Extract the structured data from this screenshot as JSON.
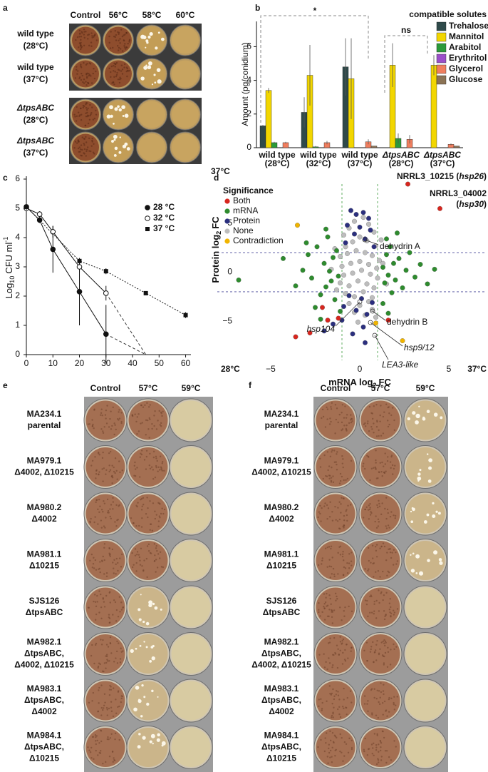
{
  "panel_labels": [
    "a",
    "b",
    "c",
    "d",
    "e",
    "f"
  ],
  "photo_panels": {
    "a": {
      "columns": [
        "Control",
        "56°C",
        "58°C",
        "60°C"
      ],
      "rows": [
        [
          "wild type",
          "(28°C)"
        ],
        [
          "wild type",
          "(37°C)"
        ],
        [
          "ΔtpsABC",
          "(28°C)"
        ],
        [
          "ΔtpsABC",
          "(37°C)"
        ]
      ]
    },
    "e": {
      "columns": [
        "Control",
        "57°C",
        "59°C"
      ],
      "rows": [
        [
          "MA234.1",
          "parental"
        ],
        [
          "MA979.1",
          "Δ4002, Δ10215"
        ],
        [
          "MA980.2",
          "Δ4002"
        ],
        [
          "MA981.1",
          "Δ10215"
        ],
        [
          "SJS126",
          "ΔtpsABC"
        ],
        [
          "MA982.1",
          "ΔtpsABC,",
          "Δ4002, Δ10215"
        ],
        [
          "MA983.1",
          "ΔtpsABC,",
          "Δ4002"
        ],
        [
          "MA984.1",
          "ΔtpsABC,",
          "Δ10215"
        ]
      ]
    },
    "f": {
      "columns": [
        "Control",
        "57°C",
        "59°C"
      ],
      "rows": [
        [
          "MA234.1",
          "parental"
        ],
        [
          "MA979.1",
          "Δ4002, Δ10215"
        ],
        [
          "MA980.2",
          "Δ4002"
        ],
        [
          "MA981.1",
          "Δ10215"
        ],
        [
          "SJS126",
          "ΔtpsABC"
        ],
        [
          "MA982.1",
          "ΔtpsABC,",
          "Δ4002, Δ10215"
        ],
        [
          "MA983.1",
          "ΔtpsABC,",
          "Δ4002"
        ],
        [
          "MA984.1",
          "ΔtpsABC,",
          "Δ10215"
        ]
      ]
    }
  },
  "chart_data": [
    {
      "type": "bar",
      "ylabel": "Amount (pg/conidium)",
      "legend_title": "compatible solutes",
      "categories": [
        [
          "wild type",
          "(28°C)"
        ],
        [
          "wild type",
          "(32°C)"
        ],
        [
          "wild type",
          "(37°C)"
        ],
        [
          "ΔtpsABC",
          "(28°C)"
        ],
        [
          "ΔtpsABC",
          "(37°C)"
        ]
      ],
      "series": [
        {
          "name": "Trehalose",
          "color": "#2f4a4a",
          "values": [
            1.3,
            2.1,
            4.8,
            0,
            0
          ],
          "errors": [
            0.05,
            0.9,
            1.7,
            0,
            0
          ]
        },
        {
          "name": "Mannitol",
          "color": "#f2d600",
          "values": [
            3.4,
            4.3,
            4.1,
            4.9,
            4.9
          ],
          "errors": [
            0.15,
            1.8,
            2.4,
            1.3,
            0.6
          ]
        },
        {
          "name": "Arabitol",
          "color": "#2b9a3a",
          "values": [
            0.3,
            0.05,
            0,
            0.55,
            0
          ],
          "errors": [
            0.05,
            0.05,
            0,
            0.3,
            0
          ]
        },
        {
          "name": "Erythritol",
          "color": "#9b4fc9",
          "values": [
            0,
            0,
            0,
            0,
            0
          ],
          "errors": [
            0,
            0,
            0,
            0,
            0
          ]
        },
        {
          "name": "Glycerol",
          "color": "#f07e5e",
          "values": [
            0.3,
            0.3,
            0.35,
            0.5,
            0.2
          ],
          "errors": [
            0.05,
            0.1,
            0.15,
            0.25,
            0.05
          ]
        },
        {
          "name": "Glucose",
          "color": "#8b7355",
          "values": [
            0,
            0,
            0.1,
            0,
            0.1
          ],
          "errors": [
            0,
            0,
            0,
            0,
            0
          ]
        }
      ],
      "ylim": [
        0,
        7.5
      ],
      "yticks": [
        0,
        2,
        4,
        6
      ],
      "annotations": [
        "*",
        "ns"
      ]
    },
    {
      "type": "line",
      "ylabel": [
        "Log",
        "10",
        "CFU ml",
        "-1"
      ],
      "series": [
        {
          "name": "28 °C",
          "marker": "filled-circle",
          "x": [
            0,
            5,
            10,
            20,
            30
          ],
          "values": [
            5.05,
            4.6,
            3.6,
            2.15,
            0.7
          ],
          "errors": [
            0.1,
            0.1,
            0.8,
            1.15,
            1.0
          ],
          "extrapolation": {
            "x": 45,
            "y": 0
          }
        },
        {
          "name": "32 °C",
          "marker": "open-circle",
          "x": [
            0,
            5,
            10,
            20,
            30
          ],
          "values": [
            5.0,
            4.8,
            4.2,
            3.0,
            2.1
          ],
          "errors": [
            0.1,
            0.1,
            0.2,
            0.2,
            0.25
          ],
          "extrapolation": {
            "x": 45,
            "y": 0
          }
        },
        {
          "name": "37 °C",
          "marker": "square",
          "x": [
            0,
            20,
            30,
            45,
            60
          ],
          "values": [
            5.05,
            3.2,
            2.85,
            2.1,
            1.35
          ],
          "errors": [
            0.1,
            0.1,
            0.1,
            0.05,
            0.1
          ]
        }
      ],
      "xlim": [
        0,
        62
      ],
      "ylim": [
        0,
        6
      ],
      "xticks": [
        0,
        10,
        20,
        30,
        40,
        50,
        60
      ],
      "yticks": [
        0,
        1,
        2,
        3,
        4,
        5,
        6
      ]
    },
    {
      "type": "scatter",
      "legend_title": "Significance",
      "xlabel": [
        "mRNA log",
        "2",
        "FC"
      ],
      "ylabel": [
        "Protein log",
        "2",
        "FC"
      ],
      "corner_labels": [
        "37°C",
        "28°C",
        "37°C"
      ],
      "xlim": [
        -8,
        7
      ],
      "ylim": [
        -9,
        9
      ],
      "xticks": [
        {
          "value": -5,
          "label": "−5"
        },
        0,
        5
      ],
      "yticks": [
        {
          "value": -5,
          "label": "−5"
        },
        0,
        5
      ],
      "thresholds": {
        "x": [
          -1,
          1
        ],
        "y": [
          -2,
          2
        ]
      },
      "series": [
        {
          "name": "Both",
          "color": "#d7261e",
          "x": [
            2.7,
            4.5,
            -3.6,
            -2.8,
            -2.1,
            -1.8,
            -1.2,
            1.6
          ],
          "values": [
            9.0,
            6.5,
            -6.6,
            -6.2,
            -3.6,
            -4.9,
            -4.7,
            -4.9
          ]
        },
        {
          "name": "mRNA",
          "color": "#2e8b2e",
          "x": [
            -6.8,
            -4.3,
            -3.6,
            -3.2,
            -2.9,
            -2.7,
            -2.4,
            -2.2,
            -2.0,
            -1.9,
            -1.8,
            -1.7,
            -1.6,
            -1.5,
            -1.4,
            -1.3,
            -1.2,
            -2.5,
            -3.0,
            -1.9,
            1.3,
            1.4,
            1.5,
            1.6,
            1.7,
            1.8,
            1.9,
            2.0,
            2.2,
            2.4,
            2.6,
            2.8,
            3.1,
            3.4,
            3.8,
            4.2,
            1.5,
            1.3,
            2.1,
            1.6,
            -1.1,
            -2.2
          ],
          "values": [
            -0.8,
            1.4,
            -1.4,
            0.2,
            1.8,
            -0.6,
            2.6,
            -2.3,
            0.9,
            -1.5,
            3.6,
            0.1,
            -0.9,
            1.5,
            -2.8,
            2.2,
            -0.4,
            -3.6,
            3.0,
            4.4,
            0.5,
            -1.1,
            1.8,
            -0.3,
            2.6,
            -2.1,
            0.9,
            -0.8,
            1.4,
            -1.6,
            0.2,
            2.0,
            -0.5,
            0.8,
            -1.2,
            0.3,
            3.4,
            -3.2,
            4.0,
            -4.2,
            -4.0,
            -4.8
          ]
        },
        {
          "name": "Protein",
          "color": "#2b2f7e",
          "x": [
            -0.5,
            -0.2,
            0.2,
            0.5,
            -0.7,
            0.0,
            0.6,
            -0.3,
            0.3,
            -0.8,
            0.8,
            -0.6,
            0.1,
            0.7,
            -0.9,
            -0.2,
            0.4,
            -1.0,
            0.2,
            -0.4,
            0.3,
            -1.5,
            -2.0
          ],
          "values": [
            6.3,
            5.9,
            6.1,
            5.5,
            4.8,
            4.6,
            4.3,
            3.9,
            3.4,
            3.0,
            2.6,
            -2.4,
            -2.7,
            -3.1,
            -3.5,
            -3.9,
            -4.3,
            -4.9,
            -5.6,
            -6.3,
            -7.2,
            -5.3,
            -6.0
          ]
        },
        {
          "name": "None",
          "color": "#bdbdbd",
          "x": [
            -0.9,
            -0.6,
            -0.3,
            0.2,
            0.5,
            0.8,
            -0.8,
            -0.4,
            0,
            0.4,
            0.9,
            -1.1,
            -0.7,
            -0.2,
            0.3,
            0.7,
            1.1,
            -1.0,
            -0.5,
            0,
            0.5,
            0.95,
            -0.9,
            -0.4,
            0.1,
            0.6,
            1.0,
            -1.1,
            -0.6,
            -0.1,
            0.4,
            0.8,
            -0.8,
            -0.3,
            0.2,
            0.7,
            -0.6,
            0,
            0.5,
            -0.3,
            0.3,
            0.7,
            -1.3,
            1.3,
            -1.4,
            1.2,
            -0.1,
            0.9,
            1.5,
            -1.6
          ],
          "values": [
            3.8,
            4.5,
            5.2,
            5.6,
            4.9,
            4.1,
            2.6,
            3.1,
            3.6,
            3.2,
            2.7,
            1.6,
            1.9,
            2.2,
            2.0,
            1.7,
            1.2,
            0.6,
            0.9,
            1.1,
            0.8,
            0.4,
            -0.3,
            -0.1,
            0.2,
            -0.2,
            -0.6,
            -1.1,
            -1.4,
            -0.9,
            -1.2,
            -1.6,
            -2.2,
            -2.5,
            -2.0,
            -2.6,
            -3.2,
            -3.4,
            -3.0,
            -4.1,
            -4.4,
            -3.8,
            -1.8,
            0.9,
            2.4,
            3.3,
            -5.1,
            -4.6,
            -1.2,
            0.3
          ]
        },
        {
          "name": "Contradiction",
          "color": "#f0b400",
          "x": [
            -3.5,
            2.4,
            0.9
          ],
          "values": [
            4.8,
            -7.0,
            -5.2
          ]
        }
      ],
      "annotations": [
        {
          "lines": [
            [
              "NRRL3_10215 (",
              "hsp26",
              ")"
            ]
          ]
        },
        {
          "lines": [
            [
              "NRRL3_04002"
            ],
            [
              "(",
              "hsp30",
              ")"
            ]
          ]
        },
        {
          "lines": [
            [
              "dehydrin A"
            ]
          ]
        },
        {
          "lines": [
            [
              "hsp104"
            ]
          ]
        },
        {
          "lines": [
            [
              "dehydrin B"
            ]
          ]
        },
        {
          "lines": [
            [
              "hsp9/12"
            ]
          ]
        },
        {
          "lines": [
            [
              "LEA3-like"
            ]
          ]
        }
      ]
    }
  ]
}
